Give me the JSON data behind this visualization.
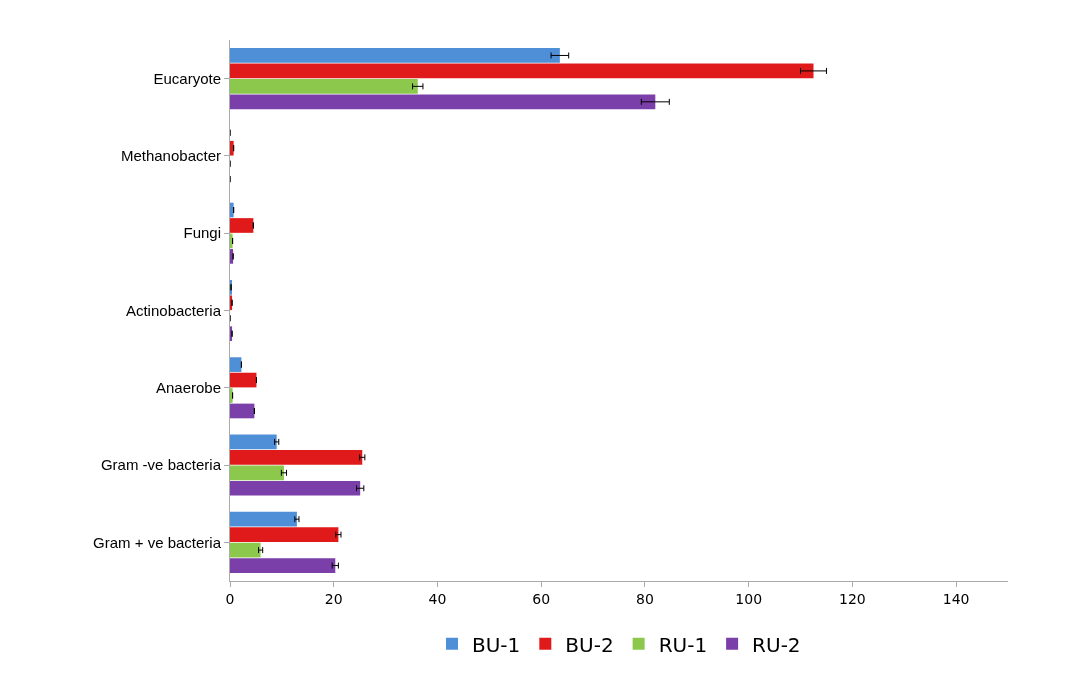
{
  "chart_data": {
    "type": "bar",
    "orientation": "horizontal",
    "categories": [
      "Eucaryote",
      "Methanobacter",
      "Fungi",
      "Actinobacteria",
      "Anaerobe",
      "Gram -ve bacteria",
      "Gram + ve bacteria"
    ],
    "series": [
      {
        "name": "BU-1",
        "color": "#4f8fd8",
        "values": [
          63.6,
          0,
          0.7,
          0.2,
          2.2,
          9,
          12.9
        ],
        "errors": [
          1.7,
          null,
          null,
          null,
          null,
          0.4,
          0.4
        ]
      },
      {
        "name": "BU-2",
        "color": "#e01a1a",
        "values": [
          112.5,
          0.7,
          4.5,
          0.4,
          5.1,
          25.5,
          20.9
        ],
        "errors": [
          2.5,
          null,
          null,
          null,
          null,
          0.5,
          0.5
        ]
      },
      {
        "name": "RU-1",
        "color": "#8cc84b",
        "values": [
          36.2,
          0,
          0.5,
          0,
          0.5,
          10.4,
          5.9
        ],
        "errors": [
          1,
          null,
          null,
          null,
          null,
          0.5,
          0.4
        ]
      },
      {
        "name": "RU-2",
        "color": "#7a3fa8",
        "values": [
          82,
          0,
          0.6,
          0.4,
          4.7,
          25.1,
          20.3
        ],
        "errors": [
          2.7,
          null,
          null,
          null,
          null,
          0.7,
          0.6
        ]
      }
    ],
    "xlim": [
      0,
      150
    ],
    "xticks": [
      0,
      20,
      40,
      60,
      80,
      100,
      120,
      140
    ],
    "grid": false,
    "legend": "bottom"
  }
}
